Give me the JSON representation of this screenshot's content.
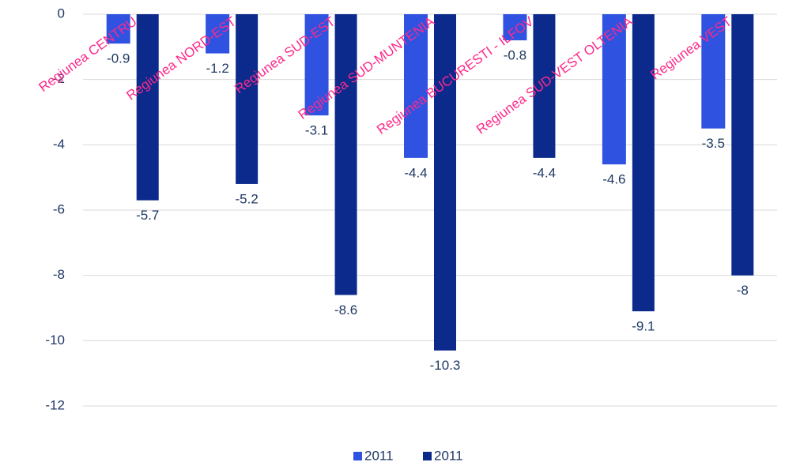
{
  "chart_data": {
    "type": "bar",
    "categories": [
      "Regiunea CENTRU",
      "Regiunea NORD-EST",
      "Regiunea SUD-EST",
      "Regiunea SUD-MUNTENIA",
      "Regiunea BUCURESTI - ILFOV",
      "Regiunea SUD-VEST OLTENIA",
      "Regiunea VEST"
    ],
    "series": [
      {
        "name": "2011",
        "color": "#2f52e0",
        "values": [
          -0.9,
          -1.2,
          -3.1,
          -4.4,
          -0.8,
          -4.6,
          -3.5
        ]
      },
      {
        "name": "2011",
        "color": "#0b2a8c",
        "values": [
          -5.7,
          -5.2,
          -8.6,
          -10.3,
          -4.4,
          -9.1,
          -8
        ]
      }
    ],
    "ylim": [
      -12,
      0
    ],
    "yticks": [
      0,
      -2,
      -4,
      -6,
      -8,
      -10,
      -12
    ],
    "grid": true,
    "legend": "bottom"
  }
}
